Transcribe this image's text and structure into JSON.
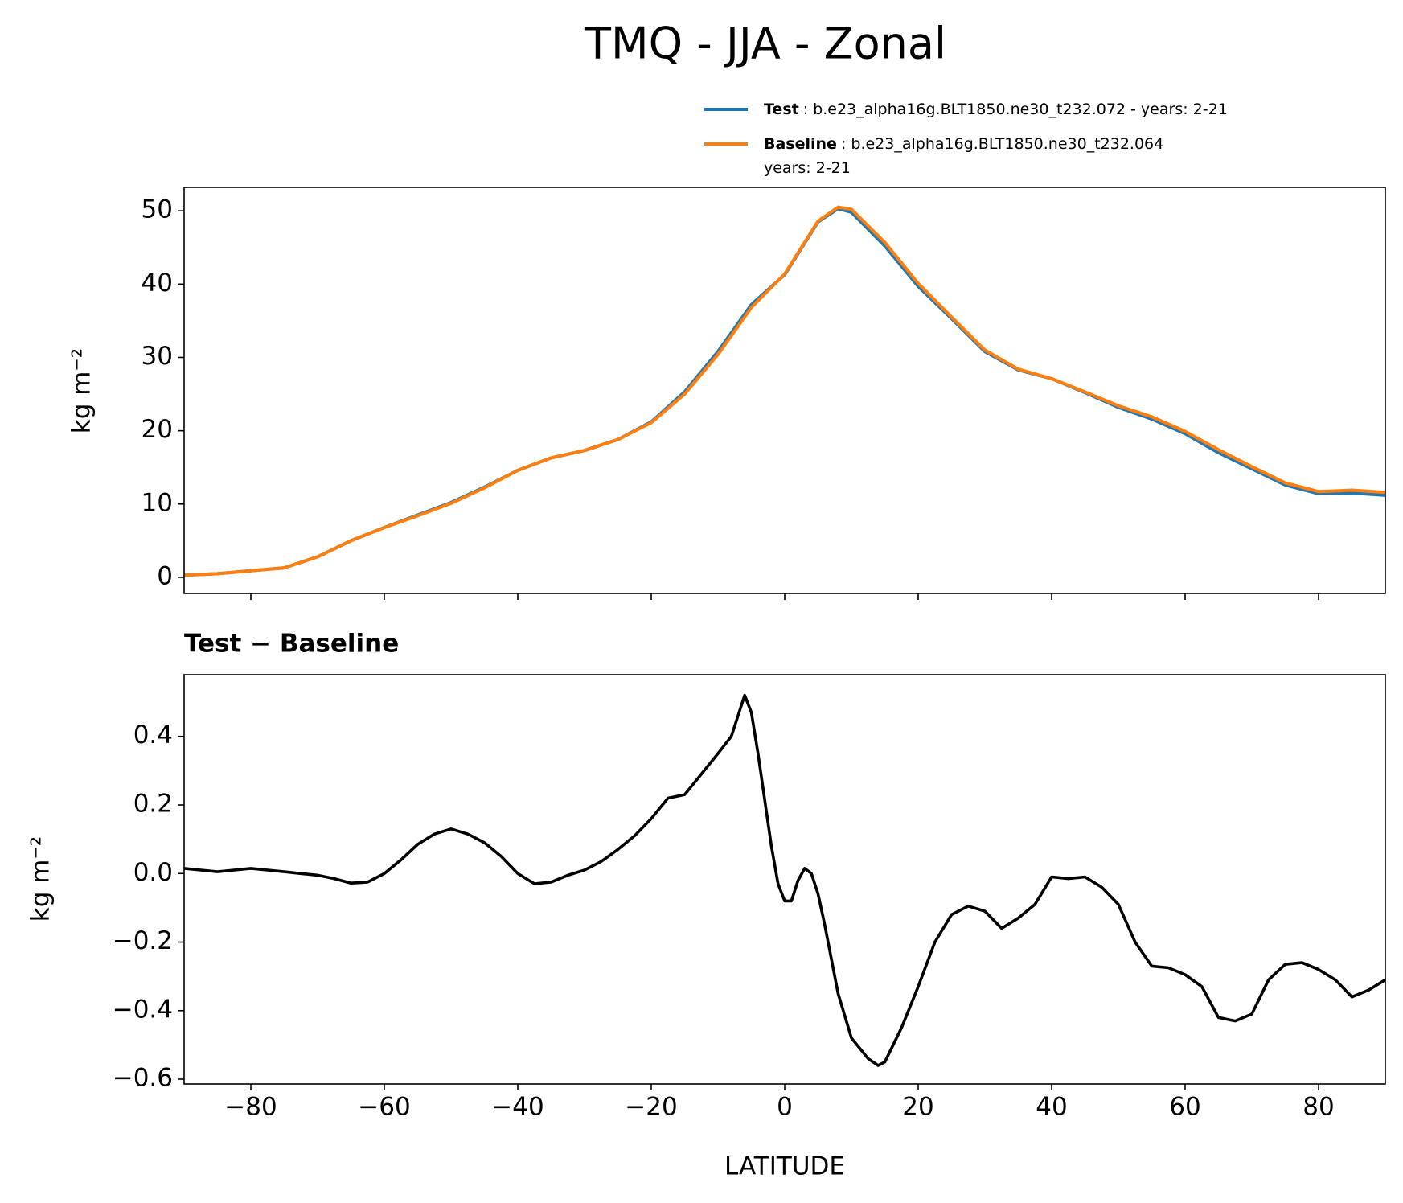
{
  "chart_data": [
    {
      "type": "line",
      "title": "TMQ - JJA - Zonal",
      "ylabel": "kg m⁻²",
      "x": [
        -90,
        -85,
        -80,
        -75,
        -70,
        -65,
        -60,
        -55,
        -50,
        -45,
        -40,
        -35,
        -30,
        -25,
        -20,
        -15,
        -10,
        -5,
        0,
        5,
        8,
        10,
        15,
        20,
        25,
        30,
        35,
        40,
        45,
        50,
        55,
        60,
        65,
        70,
        75,
        80,
        85,
        90
      ],
      "series": [
        {
          "name": "Test",
          "color": "#1f77b4",
          "description": [
            ": b.e23_alpha16g.BLT1850.ne30_t232.072 - years: 2-21"
          ],
          "values": [
            0.3,
            0.5,
            0.9,
            1.3,
            2.8,
            5,
            6.8,
            8.5,
            10.2,
            12.3,
            14.6,
            16.3,
            17.3,
            18.8,
            21.2,
            25.3,
            30.8,
            37.2,
            41.3,
            48.5,
            50.3,
            49.8,
            45.2,
            39.7,
            35.3,
            30.8,
            28.3,
            27.1,
            25.2,
            23.2,
            21.6,
            19.6,
            17,
            14.8,
            12.6,
            11.4,
            11.5,
            11.2
          ]
        },
        {
          "name": "Baseline",
          "color": "#ff7f0e",
          "description": [
            ": b.e23_alpha16g.BLT1850.ne30_t232.064",
            "years: 2-21"
          ],
          "values": [
            0.3,
            0.5,
            0.9,
            1.3,
            2.8,
            5,
            6.8,
            8.4,
            10.1,
            12.2,
            14.6,
            16.3,
            17.3,
            18.8,
            21.1,
            25.0,
            30.4,
            36.8,
            41.4,
            48.6,
            50.5,
            50.2,
            45.7,
            40.1,
            35.5,
            31.0,
            28.4,
            27.1,
            25.3,
            23.4,
            21.9,
            19.9,
            17.4,
            15.1,
            12.9,
            11.7,
            11.9,
            11.6
          ]
        }
      ],
      "xlim": [
        -90,
        90
      ],
      "xticks": [
        -80,
        -60,
        -40,
        -20,
        0,
        20,
        40,
        60,
        80
      ],
      "ylim": [
        -2.2,
        53.2
      ],
      "yticks": [
        0,
        10,
        20,
        30,
        40,
        50
      ]
    },
    {
      "type": "line",
      "title": "Test − Baseline",
      "xlabel": "LATITUDE",
      "ylabel": "kg m⁻²",
      "x": [
        -90,
        -87.5,
        -85,
        -82.5,
        -80,
        -77.5,
        -75,
        -72.5,
        -70,
        -67.5,
        -65,
        -62.5,
        -60,
        -57.5,
        -55,
        -52.5,
        -50,
        -47.5,
        -45,
        -42.5,
        -40,
        -37.5,
        -35,
        -32.5,
        -30,
        -27.5,
        -25,
        -22.5,
        -20,
        -17.5,
        -15,
        -12.5,
        -10,
        -8,
        -6,
        -5,
        -4,
        -2,
        -1,
        0,
        1,
        2,
        3,
        4,
        5,
        6,
        8,
        10,
        12.5,
        14,
        15,
        17.5,
        20,
        22.5,
        25,
        27.5,
        30,
        32.5,
        35,
        37.5,
        40,
        42.5,
        45,
        47.5,
        50,
        52.5,
        55,
        57.5,
        60,
        62.5,
        65,
        67.5,
        70,
        72.5,
        75,
        77.5,
        80,
        82.5,
        85,
        87.5,
        90
      ],
      "series": [
        {
          "color": "#000000",
          "values": [
            0.015,
            0.01,
            0.005,
            0.01,
            0.015,
            0.01,
            0.005,
            0.0,
            -0.005,
            -0.015,
            -0.028,
            -0.025,
            0.0,
            0.04,
            0.085,
            0.115,
            0.13,
            0.115,
            0.09,
            0.05,
            0.0,
            -0.03,
            -0.025,
            -0.005,
            0.01,
            0.035,
            0.07,
            0.11,
            0.16,
            0.22,
            0.23,
            0.29,
            0.35,
            0.4,
            0.52,
            0.47,
            0.35,
            0.08,
            -0.03,
            -0.08,
            -0.08,
            -0.02,
            0.015,
            0.0,
            -0.06,
            -0.15,
            -0.35,
            -0.48,
            -0.54,
            -0.56,
            -0.55,
            -0.45,
            -0.33,
            -0.2,
            -0.12,
            -0.095,
            -0.11,
            -0.16,
            -0.13,
            -0.09,
            -0.01,
            -0.015,
            -0.01,
            -0.04,
            -0.09,
            -0.2,
            -0.27,
            -0.275,
            -0.295,
            -0.33,
            -0.42,
            -0.43,
            -0.41,
            -0.31,
            -0.265,
            -0.26,
            -0.28,
            -0.31,
            -0.36,
            -0.34,
            -0.31
          ]
        }
      ],
      "xlim": [
        -90,
        90
      ],
      "xticks": [
        {
          "value": -80,
          "label": "−80"
        },
        {
          "value": -60,
          "label": "−60"
        },
        {
          "value": -40,
          "label": "−40"
        },
        {
          "value": -20,
          "label": "−20"
        },
        0,
        20,
        40,
        60,
        80
      ],
      "ylim": [
        -0.614,
        0.58
      ],
      "yticks": [
        {
          "value": -0.6,
          "label": "−0.6"
        },
        {
          "value": -0.4,
          "label": "−0.4"
        },
        {
          "value": -0.2,
          "label": "−0.2"
        },
        {
          "value": 0,
          "label": "0.0"
        },
        0.2,
        0.4
      ]
    }
  ]
}
